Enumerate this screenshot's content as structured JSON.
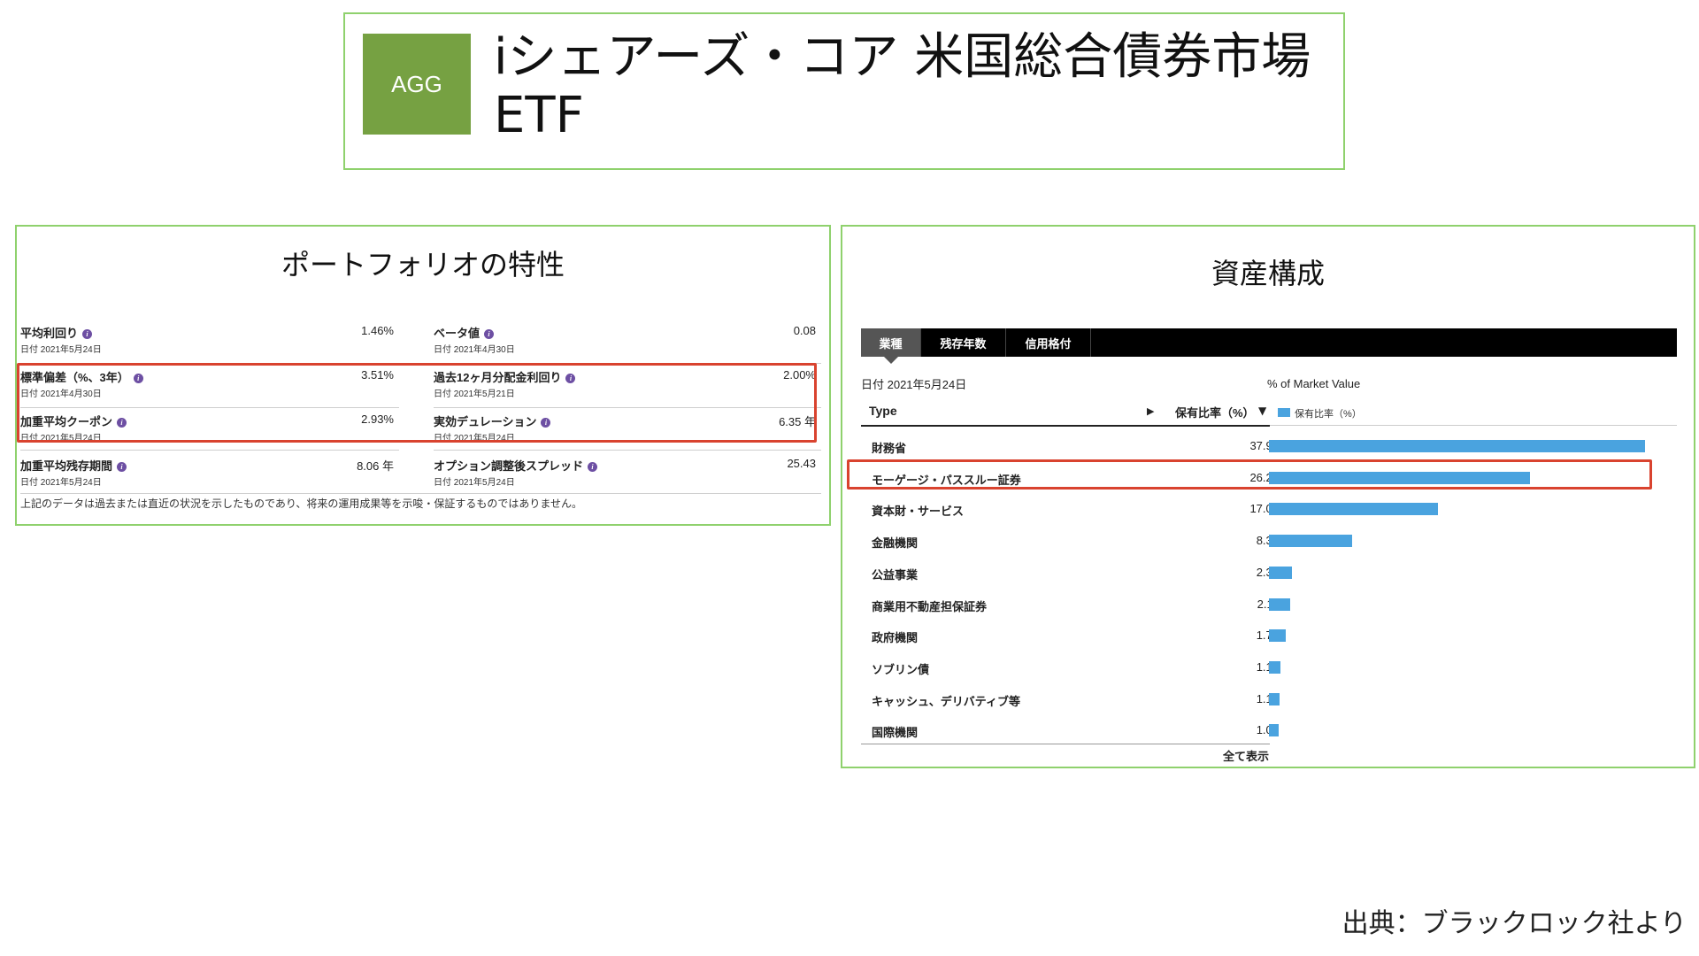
{
  "header": {
    "ticker": "AGG",
    "fund_name_line1": "iシェアーズ・コア 米国総合債券市場",
    "fund_name_line2": "ETF"
  },
  "portfolio": {
    "title": "ポートフォリオの特性",
    "metrics": [
      {
        "label": "平均利回り",
        "date": "日付 2021年5月24日",
        "value": "1.46%"
      },
      {
        "label": "ベータ値",
        "date": "日付 2021年4月30日",
        "value": "0.08"
      },
      {
        "label": "標準偏差（%、3年）",
        "date": "日付 2021年4月30日",
        "value": "3.51%"
      },
      {
        "label": "過去12ヶ月分配金利回り",
        "date": "日付 2021年5月21日",
        "value": "2.00%"
      },
      {
        "label": "加重平均クーポン",
        "date": "日付 2021年5月24日",
        "value": "2.93%"
      },
      {
        "label": "実効デュレーション",
        "date": "日付 2021年5月24日",
        "value": "6.35 年"
      },
      {
        "label": "加重平均残存期間",
        "date": "日付 2021年5月24日",
        "value": "8.06 年"
      },
      {
        "label": "オプション調整後スプレッド",
        "date": "日付 2021年5月24日",
        "value": "25.43"
      }
    ],
    "info_glyph": "i",
    "disclaimer": "上記のデータは過去または直近の状況を示したものであり、将来の運用成果等を示唆・保証するものではありません。"
  },
  "assets": {
    "title": "資産構成",
    "tabs": [
      "業種",
      "残存年数",
      "信用格付"
    ],
    "date": "日付 2021年5月24日",
    "mv_label": "% of Market Value",
    "col_type": "Type",
    "col_pct": "保有比率（%）",
    "sort_right_glyph": "▶",
    "sort_down_glyph": "▼",
    "legend_label": "保有比率（%）",
    "bar_color": "#4aa3df",
    "show_all": "全て表示",
    "rows": [
      {
        "label": "財務省",
        "value": "37.90",
        "num": 37.9
      },
      {
        "label": "モーゲージ・パススルー証券",
        "value": "26.29",
        "num": 26.29
      },
      {
        "label": "資本財・サービス",
        "value": "17.03",
        "num": 17.03
      },
      {
        "label": "金融機関",
        "value": "8.35",
        "num": 8.35
      },
      {
        "label": "公益事業",
        "value": "2.32",
        "num": 2.32
      },
      {
        "label": "商業用不動産担保証券",
        "value": "2.11",
        "num": 2.11
      },
      {
        "label": "政府機関",
        "value": "1.72",
        "num": 1.72
      },
      {
        "label": "ソブリン債",
        "value": "1.14",
        "num": 1.14
      },
      {
        "label": "キャッシュ、デリバティブ等",
        "value": "1.10",
        "num": 1.1
      },
      {
        "label": "国際機関",
        "value": "1.01",
        "num": 1.01
      }
    ]
  },
  "source": "出典：ブラックロック社より",
  "highlight_color": "#d9432f"
}
